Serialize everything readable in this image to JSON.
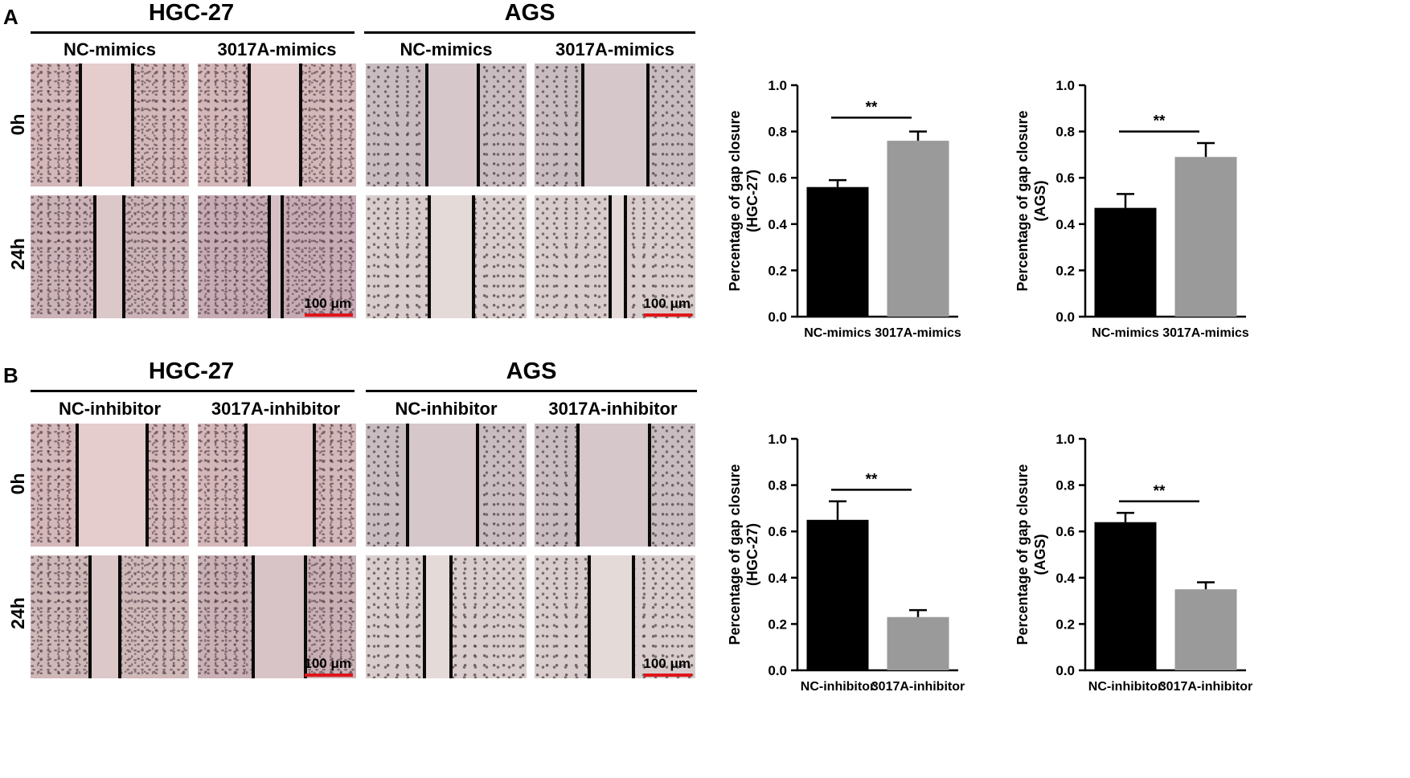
{
  "panel_a": {
    "letter": "A",
    "groups": [
      {
        "title": "HGC-27",
        "conditions": [
          "NC-mimics",
          "3017A-mimics"
        ]
      },
      {
        "title": "AGS",
        "conditions": [
          "NC-mimics",
          "3017A-mimics"
        ]
      }
    ],
    "times": [
      "0h",
      "24h"
    ],
    "scale_bar": "100 μm"
  },
  "panel_b": {
    "letter": "B",
    "groups": [
      {
        "title": "HGC-27",
        "conditions": [
          "NC-inhibitor",
          "3017A-inhibitor"
        ]
      },
      {
        "title": "AGS",
        "conditions": [
          "NC-inhibitor",
          "3017A-inhibitor"
        ]
      }
    ],
    "times": [
      "0h",
      "24h"
    ],
    "scale_bar": "100 μm"
  },
  "colors": {
    "hgc_tissue": "#d4b8b9",
    "hgc_gap": "#e6cfce",
    "ags_tissue": "#c9bcc0",
    "ags_gap": "#dccccf",
    "bar_control": "#000000",
    "bar_treatment": "#9a9a9a",
    "scale_bar": "#e0151b"
  },
  "chart_data": [
    {
      "type": "bar",
      "categories": [
        "NC-mimics",
        "3017A-mimics"
      ],
      "values": [
        0.56,
        0.76
      ],
      "errors": [
        0.03,
        0.04
      ],
      "ylabel": "Percentage of gap closure\n(HGC-27)",
      "ylim": [
        0,
        1.0
      ],
      "yticks": [
        "0.0",
        "0.2",
        "0.4",
        "0.6",
        "0.8",
        "1.0"
      ],
      "significance": "**",
      "sig_y": 0.86,
      "grid": false
    },
    {
      "type": "bar",
      "categories": [
        "NC-mimics",
        "3017A-mimics"
      ],
      "values": [
        0.47,
        0.69
      ],
      "errors": [
        0.06,
        0.06
      ],
      "ylabel": "Percentage of gap closure\n(AGS)",
      "ylim": [
        0,
        1.0
      ],
      "yticks": [
        "0.0",
        "0.2",
        "0.4",
        "0.6",
        "0.8",
        "1.0"
      ],
      "significance": "**",
      "sig_y": 0.8,
      "grid": false
    },
    {
      "type": "bar",
      "categories": [
        "NC-inhibitor",
        "3017A-inhibitor"
      ],
      "values": [
        0.65,
        0.23
      ],
      "errors": [
        0.08,
        0.03
      ],
      "ylabel": "Percentage of gap closure\n(HGC-27)",
      "ylim": [
        0,
        1.0
      ],
      "yticks": [
        "0.0",
        "0.2",
        "0.4",
        "0.6",
        "0.8",
        "1.0"
      ],
      "significance": "**",
      "sig_y": 0.78,
      "grid": false
    },
    {
      "type": "bar",
      "categories": [
        "NC-inhibitor",
        "3017A-inhibitor"
      ],
      "values": [
        0.64,
        0.35
      ],
      "errors": [
        0.04,
        0.03
      ],
      "ylabel": "Percentage of gap closure\n(AGS)",
      "ylim": [
        0,
        1.0
      ],
      "yticks": [
        "0.0",
        "0.2",
        "0.4",
        "0.6",
        "0.8",
        "1.0"
      ],
      "significance": "**",
      "sig_y": 0.73,
      "grid": false
    }
  ]
}
